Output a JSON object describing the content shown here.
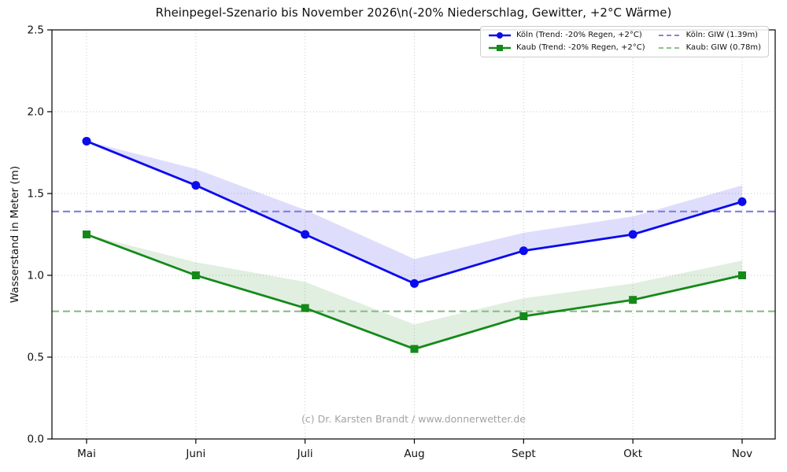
{
  "colors": {
    "koeln": "#0b0bec",
    "kaub": "#15891a",
    "koeln_band": "#0b0bec22",
    "kaub_band": "#15891a22",
    "koeln_giw": "#8585dc",
    "kaub_giw": "#8fbf8f",
    "grid": "#c9c9c9",
    "spine": "#000000",
    "tick_label": "#111111",
    "watermark": "#a3a3a3"
  },
  "chart_data": {
    "type": "line",
    "title": "Rheinpegel-Szenario bis November 2026\\n(-20% Niederschlag, Gewitter, +2°C Wärme)",
    "xlabel": "",
    "ylabel": "Wasserstand in Meter (m)",
    "ylim": [
      0.0,
      2.5
    ],
    "yticks": [
      "0.0",
      "0.5",
      "1.0",
      "1.5",
      "2.0",
      "2.5"
    ],
    "categories": [
      "Mai",
      "Juni",
      "Juli",
      "Aug",
      "Sept",
      "Okt",
      "Nov"
    ],
    "series": [
      {
        "name": "Köln (Trend: -20% Regen, +2°C)",
        "color_key": "koeln",
        "marker": "circle",
        "values": [
          1.82,
          1.55,
          1.25,
          0.95,
          1.15,
          1.25,
          1.45
        ],
        "upper_band": [
          1.82,
          1.65,
          1.4,
          1.1,
          1.26,
          1.36,
          1.55
        ]
      },
      {
        "name": "Kaub (Trend: -20% Regen, +2°C)",
        "color_key": "kaub",
        "marker": "square",
        "values": [
          1.25,
          1.0,
          0.8,
          0.55,
          0.75,
          0.85,
          1.0
        ],
        "upper_band": [
          1.25,
          1.08,
          0.96,
          0.7,
          0.86,
          0.95,
          1.09
        ]
      }
    ],
    "reference_lines": [
      {
        "name": "Köln: GIW (1.39m)",
        "value": 1.39,
        "color_key": "koeln_giw"
      },
      {
        "name": "Kaub: GIW (0.78m)",
        "value": 0.78,
        "color_key": "kaub_giw"
      }
    ],
    "grid": true,
    "legend_position": "upper right",
    "watermark": "(c) Dr. Karsten Brandt / www.donnerwetter.de"
  }
}
